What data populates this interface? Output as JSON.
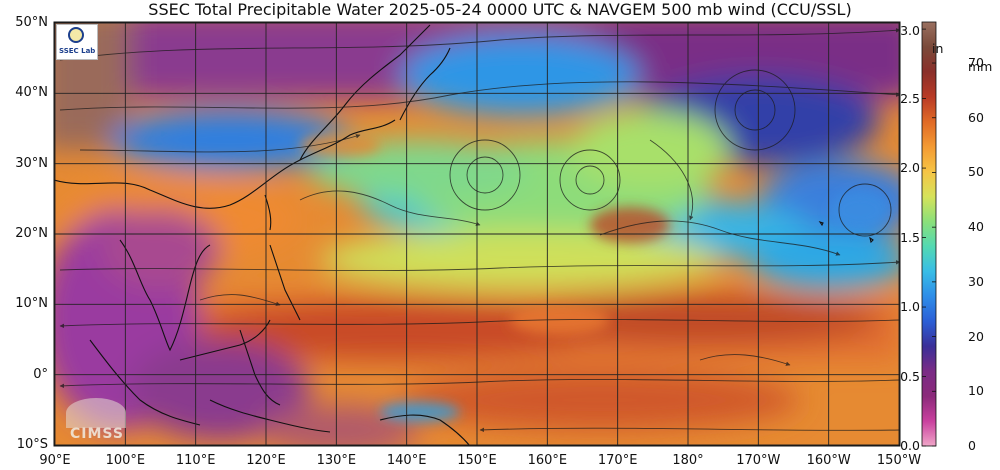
{
  "title": "SSEC Total Precipitable Water  2025-05-24 0000 UTC & NAVGEM 500 mb wind (CCU/SSL)",
  "lat_labels": [
    "50°N",
    "40°N",
    "30°N",
    "20°N",
    "10°N",
    "0°",
    "10°S"
  ],
  "lon_labels": [
    "90°E",
    "100°E",
    "110°E",
    "120°E",
    "130°E",
    "140°E",
    "150°E",
    "160°E",
    "170°E",
    "180°",
    "170°W",
    "160°W",
    "150°W"
  ],
  "colorbar": {
    "inch_unit": "in",
    "mm_unit": "mm",
    "inch_ticks": [
      "3.0",
      "2.5",
      "2.0",
      "1.5",
      "1.0",
      "0.5",
      "0.0"
    ],
    "mm_ticks": [
      "70",
      "60",
      "50",
      "40",
      "30",
      "20",
      "10",
      "0"
    ],
    "colors": [
      "#f0a6c8",
      "#c9409e",
      "#8b2a7a",
      "#7a2b86",
      "#3a2f98",
      "#2b5fd6",
      "#2e8de8",
      "#38bde6",
      "#53d9b2",
      "#8be07a",
      "#d6e25a",
      "#f6c445",
      "#f39a33",
      "#e06a26",
      "#b83a26",
      "#8a2f2a",
      "#7a4a3a",
      "#9a7060"
    ]
  },
  "logos": {
    "ssec_text": "SSEC Lab",
    "cimss_text": "CIMSS"
  },
  "icons": [
    "ssec-seal-icon",
    "satellite-dish-icon"
  ]
}
